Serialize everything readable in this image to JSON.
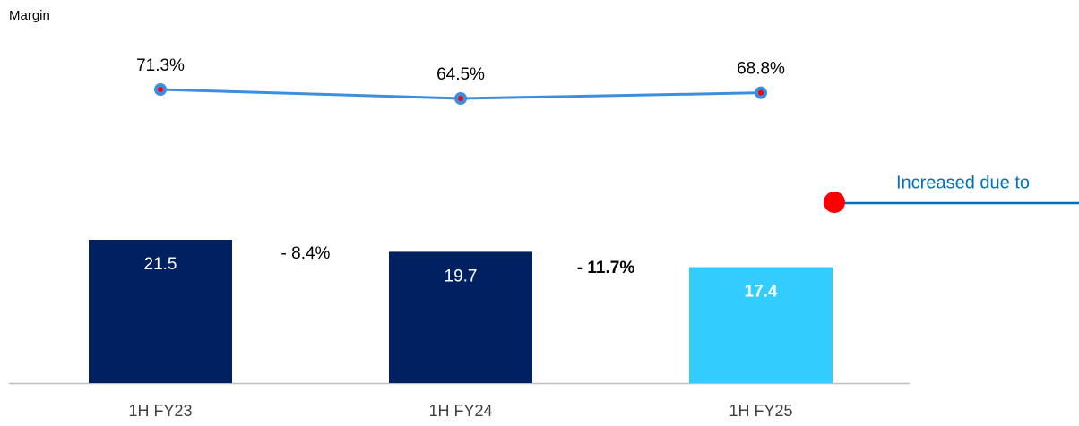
{
  "chart_data": {
    "type": "bar",
    "line_label": "Margin",
    "categories": [
      "1H FY23",
      "1H FY24",
      "1H FY25"
    ],
    "series": [
      {
        "type": "bar",
        "colors": [
          "#002060",
          "#002060",
          "#33ccff"
        ],
        "values": [
          21.5,
          19.7,
          17.4
        ],
        "bold": [
          false,
          false,
          true
        ]
      },
      {
        "type": "line",
        "color": "#3b8ee0",
        "marker_color": "#ff0000",
        "values": [
          71.3,
          64.5,
          68.8
        ],
        "value_labels": [
          "71.3%",
          "64.5%",
          "68.8%"
        ]
      }
    ],
    "changes": [
      {
        "text": "- 8.4%",
        "bold": false
      },
      {
        "text": "- 11.7%",
        "bold": true
      }
    ],
    "annotation": {
      "text": "Increased due to",
      "color": "#0070c0",
      "marker_color": "#ff0000"
    }
  }
}
